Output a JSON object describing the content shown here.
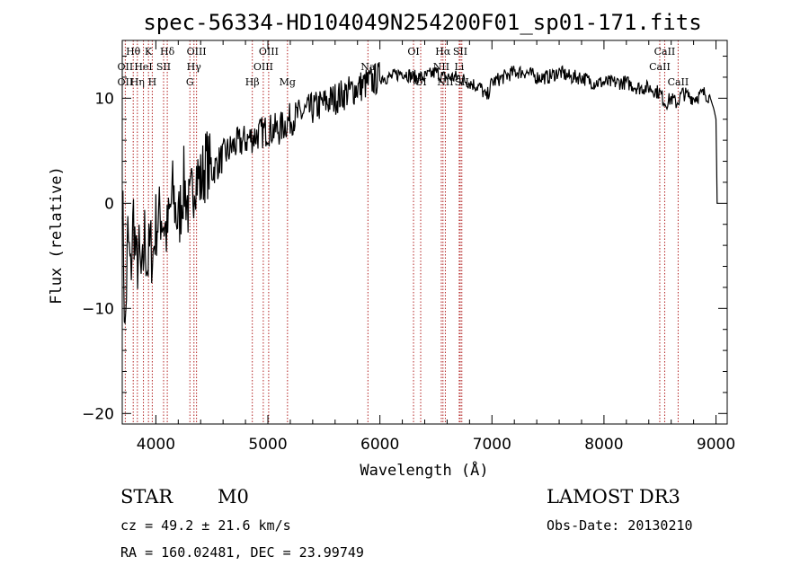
{
  "chart_data": {
    "type": "line",
    "title": "spec-56334-HD104049N254200F01_sp01-171.fits",
    "xlabel": "Wavelength (Å)",
    "ylabel": "Flux (relative)",
    "xlim": [
      3700,
      9100
    ],
    "ylim": [
      -21,
      15.5
    ],
    "x_ticks": [
      {
        "value": 4000,
        "label": "4000"
      },
      {
        "value": 5000,
        "label": "5000"
      },
      {
        "value": 6000,
        "label": "6000"
      },
      {
        "value": 7000,
        "label": "7000"
      },
      {
        "value": 8000,
        "label": "8000"
      },
      {
        "value": 9000,
        "label": "9000"
      }
    ],
    "y_ticks": [
      {
        "value": -20,
        "label": "−20"
      },
      {
        "value": -10,
        "label": "−10"
      },
      {
        "value": 0,
        "label": "0"
      },
      {
        "value": 10,
        "label": "10"
      }
    ],
    "spectrum": {
      "name": "flux",
      "x": [
        3700,
        3725,
        3750,
        3775,
        3800,
        3825,
        3850,
        3875,
        3900,
        3925,
        3950,
        3975,
        4000,
        4050,
        4100,
        4150,
        4200,
        4250,
        4300,
        4350,
        4400,
        4450,
        4500,
        4600,
        4700,
        4800,
        4900,
        5000,
        5100,
        5200,
        5300,
        5400,
        5500,
        5600,
        5700,
        5800,
        5900,
        6000,
        6100,
        6200,
        6300,
        6400,
        6500,
        6560,
        6600,
        6700,
        6800,
        6900,
        6950,
        7000,
        7100,
        7200,
        7300,
        7400,
        7500,
        7600,
        7700,
        7800,
        7900,
        8000,
        8100,
        8200,
        8300,
        8400,
        8500,
        8550,
        8600,
        8650,
        8700,
        8800,
        8900,
        8950,
        8980,
        9000,
        9010,
        9020
      ],
      "y": [
        2,
        -13,
        -3,
        -7,
        -1,
        -6,
        -5,
        -8,
        -3,
        -6,
        -4,
        -5,
        -2,
        -1,
        -3,
        1,
        -2,
        2,
        -1,
        3,
        2,
        4,
        3,
        4.5,
        5.5,
        6,
        6.5,
        7,
        7,
        8,
        8.5,
        9,
        9.5,
        10,
        10.5,
        11,
        11.5,
        12,
        12,
        12.5,
        12,
        12,
        12.5,
        12,
        12,
        12,
        11.5,
        11,
        10,
        11.5,
        12,
        12.5,
        12.5,
        12,
        12,
        12.5,
        12,
        12,
        11.5,
        11.5,
        11.5,
        11.5,
        11,
        11,
        10.5,
        9.5,
        10,
        9.5,
        10.5,
        10,
        10.5,
        10,
        9,
        8,
        0,
        0
      ]
    },
    "line_markers": [
      {
        "name": "Hθ",
        "wavelength": 3798,
        "row": 1
      },
      {
        "name": "OII",
        "wavelength": 3727,
        "row": 2
      },
      {
        "name": "OII",
        "wavelength": 3727,
        "row": 3
      },
      {
        "name": "HeI",
        "wavelength": 3889,
        "row": 2
      },
      {
        "name": "Hη",
        "wavelength": 3835,
        "row": 3
      },
      {
        "name": "K",
        "wavelength": 3934,
        "row": 1
      },
      {
        "name": "H",
        "wavelength": 3968,
        "row": 3
      },
      {
        "name": "SII",
        "wavelength": 4069,
        "row": 2
      },
      {
        "name": "Hδ",
        "wavelength": 4102,
        "row": 1
      },
      {
        "name": "OIII",
        "wavelength": 4363,
        "row": 1
      },
      {
        "name": "Hγ",
        "wavelength": 4340,
        "row": 2
      },
      {
        "name": "G",
        "wavelength": 4304,
        "row": 3
      },
      {
        "name": "Hβ",
        "wavelength": 4861,
        "row": 3
      },
      {
        "name": "OIII",
        "wavelength": 5007,
        "row": 1
      },
      {
        "name": "OIII",
        "wavelength": 4959,
        "row": 2
      },
      {
        "name": "Mg",
        "wavelength": 5175,
        "row": 3
      },
      {
        "name": "Na",
        "wavelength": 5893,
        "row": 2
      },
      {
        "name": "OI",
        "wavelength": 6300,
        "row": 1
      },
      {
        "name": "OI",
        "wavelength": 6364,
        "row": 3
      },
      {
        "name": "Hα",
        "wavelength": 6563,
        "row": 1
      },
      {
        "name": "NII",
        "wavelength": 6548,
        "row": 2
      },
      {
        "name": "NII",
        "wavelength": 6584,
        "row": 3
      },
      {
        "name": "SII",
        "wavelength": 6717,
        "row": 1
      },
      {
        "name": "Li",
        "wavelength": 6708,
        "row": 2
      },
      {
        "name": "SII",
        "wavelength": 6731,
        "row": 3
      },
      {
        "name": "CaII",
        "wavelength": 8542,
        "row": 1
      },
      {
        "name": "CaII",
        "wavelength": 8498,
        "row": 2
      },
      {
        "name": "CaII",
        "wavelength": 8662,
        "row": 3
      }
    ],
    "colors": {
      "spectrum": "#000000",
      "marker": "#b22222",
      "axes": "#000000"
    }
  },
  "footer": {
    "object_class": "STAR",
    "subclass": "M0",
    "survey": "LAMOST DR3",
    "redshift": "cz = 49.2 ± 21.6 km/s",
    "obs_date": "Obs-Date: 20130210",
    "coords": "RA = 160.02481, DEC =  23.99749"
  }
}
